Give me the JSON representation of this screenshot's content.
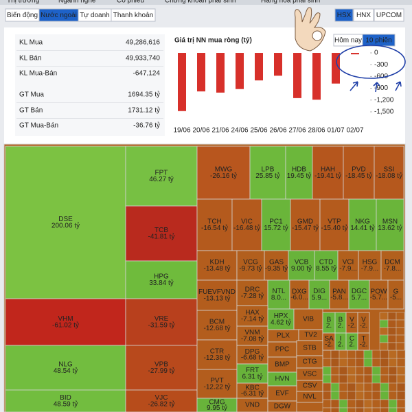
{
  "nav": {
    "tabs": [
      "Thị trường",
      "Ngành nghề",
      "Cổ phiếu",
      "Chứng khoán phái sinh",
      "Hàng hóa phái sinh"
    ]
  },
  "subtabs": {
    "items": [
      "Biến động",
      "Nước ngoài",
      "Tự doanh",
      "Thanh khoản"
    ],
    "active": 1
  },
  "exchanges": {
    "items": [
      "HSX",
      "HNX",
      "UPCOM"
    ],
    "active": 0
  },
  "stats": [
    {
      "label": "KL Mua",
      "value": "49,286,616",
      "color": "#2e9a2e"
    },
    {
      "label": "KL Bán",
      "value": "49,933,740",
      "color": "#e02a22"
    },
    {
      "label": "KL Mua-Bán",
      "value": "-647,124",
      "color": "#e02a22"
    },
    {
      "label": "GT Mua",
      "value": "1694.35 tỷ",
      "color": "#2e9a2e"
    },
    {
      "label": "GT Bán",
      "value": "1731.12 tỷ",
      "color": "#e02a22"
    },
    {
      "label": "GT Mua-Bán",
      "value": "-36.76 tỷ",
      "color": "#e02a22"
    }
  ],
  "periods": {
    "items": [
      "Hôm nay",
      "10 phiên"
    ],
    "active": 1
  },
  "chart_data": {
    "type": "bar",
    "title": "Giá trị NN mua ròng (tỷ)",
    "categories": [
      "19/06",
      "20/06",
      "21/06",
      "24/06",
      "25/06",
      "26/06",
      "27/06",
      "28/06",
      "01/07",
      "02/07"
    ],
    "values": [
      -1480,
      -980,
      -1010,
      -920,
      -700,
      -580,
      -1150,
      -1190,
      -780,
      -37
    ],
    "color": "#d7302a",
    "ylim": [
      -1650,
      100
    ],
    "yticks": [
      0,
      -300,
      -600,
      -900,
      {
        "value": -1200,
        "label": "-1,200"
      },
      {
        "value": -1500,
        "label": "-1,500"
      }
    ],
    "y_axis_side": "right",
    "grid": false
  },
  "treemap": {
    "tiles": [
      {
        "name": "DSE",
        "value": 200.06,
        "value_label": "200.06 tỷ",
        "color": "#7cc242"
      },
      {
        "name": "VHM",
        "value": -61.02,
        "value_label": "-61.02 tỷ",
        "color": "#c1261c"
      },
      {
        "name": "NLG",
        "value": 48.54,
        "value_label": "48.54 tỷ",
        "color": "#72bd3f"
      },
      {
        "name": "BID",
        "value": 48.59,
        "value_label": "48.59 tỷ",
        "color": "#72bd3f"
      },
      {
        "name": "FPT",
        "value": 46.27,
        "value_label": "46.27 tỷ",
        "color": "#77c043"
      },
      {
        "name": "TCB",
        "value": -41.81,
        "value_label": "-41.81 tỷ",
        "color": "#b92a1e"
      },
      {
        "name": "HPG",
        "value": 33.84,
        "value_label": "33.84 tỷ",
        "color": "#6fbb3c"
      },
      {
        "name": "VRE",
        "value": -31.59,
        "value_label": "-31.59 tỷ",
        "color": "#b8401d"
      },
      {
        "name": "VPB",
        "value": -27.99,
        "value_label": "-27.99 tỷ",
        "color": "#b8491c"
      },
      {
        "name": "VJC",
        "value": -26.82,
        "value_label": "-26.82 tỷ",
        "color": "#b74c1b"
      },
      {
        "name": "MWG",
        "value": -26.16,
        "value_label": "-26.16 tỷ",
        "color": "#b8561e"
      },
      {
        "name": "LPB",
        "value": 25.85,
        "value_label": "25.85 tỷ",
        "color": "#6eb93c"
      },
      {
        "name": "HDB",
        "value": 19.45,
        "value_label": "19.45 tỷ",
        "color": "#6cb73b"
      },
      {
        "name": "HAH",
        "value": -19.41,
        "value_label": "-19.41 tỷ",
        "color": "#b5561d"
      },
      {
        "name": "PVD",
        "value": -18.45,
        "value_label": "-18.45 tỷ",
        "color": "#b5581d"
      },
      {
        "name": "SSI",
        "value": -18.08,
        "value_label": "-18.08 tỷ",
        "color": "#b5581d"
      },
      {
        "name": "TCH",
        "value": -16.54,
        "value_label": "-16.54 tỷ",
        "color": "#b45a1d"
      },
      {
        "name": "VIC",
        "value": -16.48,
        "value_label": "-16.48 tỷ",
        "color": "#b45a1d"
      },
      {
        "name": "PC1",
        "value": 15.72,
        "value_label": "15.72 tỷ",
        "color": "#6ab53a"
      },
      {
        "name": "GMD",
        "value": -15.47,
        "value_label": "-15.47 tỷ",
        "color": "#b45b1d"
      },
      {
        "name": "VTP",
        "value": -15.4,
        "value_label": "-15.40 tỷ",
        "color": "#b45b1d"
      },
      {
        "name": "NKG",
        "value": 14.41,
        "value_label": "14.41 tỷ",
        "color": "#6ab53a"
      },
      {
        "name": "MSN",
        "value": 13.62,
        "value_label": "13.62 tỷ",
        "color": "#6ab53a"
      },
      {
        "name": "KDH",
        "value": -13.48,
        "value_label": "-13.48 tỷ",
        "color": "#b35d1d"
      },
      {
        "name": "FUEVFVND",
        "value": -13.13,
        "value_label": "-13.13 tỷ",
        "color": "#b35d1d"
      },
      {
        "name": "BCM",
        "value": -12.68,
        "value_label": "-12.68 tỷ",
        "color": "#b35d1d"
      },
      {
        "name": "CTR",
        "value": -12.38,
        "value_label": "-12.38 tỷ",
        "color": "#b35d1d"
      },
      {
        "name": "PVT",
        "value": -12.22,
        "value_label": "-12.22 tỷ",
        "color": "#b35d1d"
      },
      {
        "name": "CMG",
        "value": 9.95,
        "value_label": "9.95 tỷ",
        "color": "#68b33a"
      },
      {
        "name": "VCG",
        "value": -9.73,
        "value_label": "-9.73 tỷ",
        "color": "#b25f1d"
      },
      {
        "name": "GAS",
        "value": -9.35,
        "value_label": "-9.35 tỷ",
        "color": "#b25f1d"
      },
      {
        "name": "VCB",
        "value": 9.0,
        "value_label": "9.00 tỷ",
        "color": "#68b33a"
      },
      {
        "name": "CTD",
        "value": 8.55,
        "value_label": "8.55 tỷ",
        "color": "#68b33a"
      },
      {
        "name": "VCI",
        "value": -7.9,
        "value_label": "-7.9...",
        "color": "#b2601d"
      },
      {
        "name": "HSG",
        "value": -7.9,
        "value_label": "-7.9...",
        "color": "#b2601d"
      },
      {
        "name": "DCM",
        "value": -7.8,
        "value_label": "-7.8...",
        "color": "#b2601d"
      },
      {
        "name": "DRC",
        "value": -7.28,
        "value_label": "-7.28 tỷ",
        "color": "#b2601d"
      },
      {
        "name": "NTL",
        "value": 8.0,
        "value_label": "8.0...",
        "color": "#68b33a"
      },
      {
        "name": "DXG",
        "value": -6.0,
        "value_label": "-6.0...",
        "color": "#b2601d"
      },
      {
        "name": "DIG",
        "value": 5.9,
        "value_label": "5.9...",
        "color": "#68b33a"
      },
      {
        "name": "PAN",
        "value": -5.8,
        "value_label": "-5.8...",
        "color": "#b2601d"
      },
      {
        "name": "DGC",
        "value": 5.7,
        "value_label": "5.7...",
        "color": "#68b33a"
      },
      {
        "name": "POW",
        "value": -5.7,
        "value_label": "-5.7...",
        "color": "#b2601d"
      },
      {
        "name": "G",
        "value": -5,
        "value_label": "-5...",
        "color": "#b2601d"
      },
      {
        "name": "HAX",
        "value": -7.14,
        "value_label": "-7.14 tỷ",
        "color": "#b2601d"
      },
      {
        "name": "VNM",
        "value": -7.08,
        "value_label": "-7.08 tỷ",
        "color": "#b2601d"
      },
      {
        "name": "DPG",
        "value": -6.68,
        "value_label": "-6.68 tỷ",
        "color": "#b2601d"
      },
      {
        "name": "FRT",
        "value": 6.31,
        "value_label": "6.31 tỷ",
        "color": "#68b33a"
      },
      {
        "name": "KBC",
        "value": -6.31,
        "value_label": "-6.31 tỷ",
        "color": "#b2601d"
      },
      {
        "name": "VND",
        "value": null,
        "value_label": null,
        "color": "#b2601d"
      },
      {
        "name": "HPX",
        "value": 4.62,
        "value_label": "4.62 tỷ",
        "color": "#68b33a"
      },
      {
        "name": "VIB",
        "value": null,
        "value_label": null,
        "color": "#b2601d"
      },
      {
        "name": "PLX",
        "value": null,
        "value_label": null,
        "color": "#b2601d"
      },
      {
        "name": "TV2",
        "value": null,
        "value_label": null,
        "color": "#b2601d"
      },
      {
        "name": "PPC",
        "value": null,
        "value_label": null,
        "color": "#b2601d"
      },
      {
        "name": "STB",
        "value": null,
        "value_label": null,
        "color": "#b2601d"
      },
      {
        "name": "BMP",
        "value": null,
        "value_label": null,
        "color": "#b2601d"
      },
      {
        "name": "CTG",
        "value": null,
        "value_label": null,
        "color": "#b2601d"
      },
      {
        "name": "HVN",
        "value": null,
        "value_label": null,
        "color": "#68b33a"
      },
      {
        "name": "VSC",
        "value": null,
        "value_label": null,
        "color": "#b2601d"
      },
      {
        "name": "CSV",
        "value": null,
        "value_label": null,
        "color": "#b2601d"
      },
      {
        "name": "EVF",
        "value": null,
        "value_label": null,
        "color": "#b2601d"
      },
      {
        "name": "NVL",
        "value": null,
        "value_label": null,
        "color": "#b2601d"
      },
      {
        "name": "DGW",
        "value": null,
        "value_label": null,
        "color": "#b2601d"
      },
      {
        "name": "B",
        "value": 2,
        "value_label": "2.",
        "color": "#68b33a"
      },
      {
        "name": "B",
        "value": 2,
        "value_label": "2.",
        "color": "#68b33a"
      },
      {
        "name": "V",
        "value": -2,
        "value_label": "-2.",
        "color": "#b2601d"
      },
      {
        "name": "V",
        "value": -2,
        "value_label": "-2.",
        "color": "#b2601d"
      },
      {
        "name": "SA",
        "value": -2,
        "value_label": "-2.",
        "color": "#b2601d"
      },
      {
        "name": "I",
        "value": 2,
        "value_label": "2.",
        "color": "#68b33a"
      },
      {
        "name": "C",
        "value": 2,
        "value_label": "2.",
        "color": "#68b33a"
      },
      {
        "name": "T",
        "value": -2,
        "value_label": "-2.",
        "color": "#b2601d"
      }
    ]
  }
}
